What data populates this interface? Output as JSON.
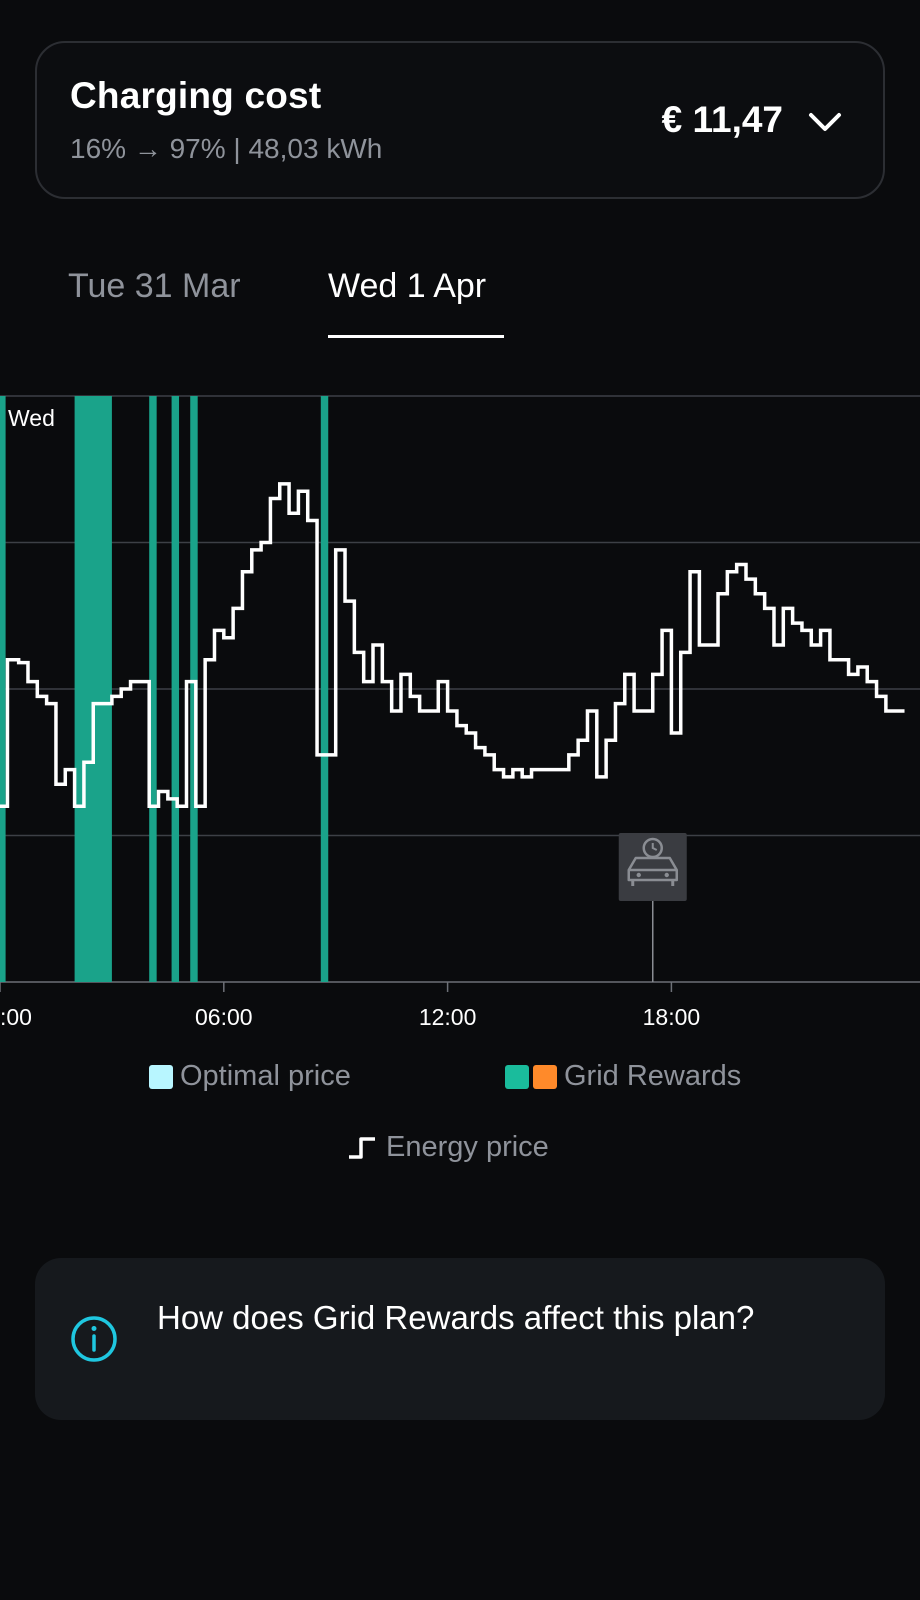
{
  "cost_card": {
    "title": "Charging cost",
    "subtitle": "16% → 97% | 48,03 kWh",
    "amount": "€ 11,47",
    "chevron_icon": "chevron-down-icon"
  },
  "tabs": [
    {
      "label": "Tue 31 Mar",
      "active": false
    },
    {
      "label": "Wed 1 Apr",
      "active": true
    }
  ],
  "chart_data": {
    "type": "line",
    "day_label": "Wed",
    "x_ticks": [
      ":00",
      "06:00",
      "12:00",
      "18:00"
    ],
    "x_tick_hours": [
      0,
      6,
      12,
      18
    ],
    "x_range_hours": [
      0,
      24.7
    ],
    "y_range": [
      0,
      4
    ],
    "grid": "horizontal",
    "line_style": "step",
    "colors": {
      "energy_price": "#ffffff",
      "grid_rewards_teal": "#1aa38a",
      "grid_rewards_orange": "#ff8a2a",
      "optimal_price": "#b8f6ff",
      "plug_in_marker": "#3a3c41"
    },
    "energy_price": {
      "x": [
        0,
        0.2,
        0.5,
        0.75,
        1.0,
        1.25,
        1.5,
        1.75,
        2.0,
        2.25,
        2.5,
        2.75,
        3.0,
        3.25,
        3.5,
        3.75,
        4.0,
        4.25,
        4.5,
        4.75,
        5.0,
        5.25,
        5.5,
        5.75,
        6.0,
        6.25,
        6.5,
        6.75,
        7.0,
        7.25,
        7.5,
        7.75,
        8.0,
        8.25,
        8.5,
        8.75,
        9.0,
        9.25,
        9.5,
        9.75,
        10.0,
        10.25,
        10.5,
        10.75,
        11.0,
        11.25,
        11.5,
        11.75,
        12.0,
        12.25,
        12.5,
        12.75,
        13.0,
        13.25,
        13.5,
        13.75,
        14.0,
        14.25,
        14.5,
        14.75,
        15.0,
        15.25,
        15.5,
        15.75,
        16.0,
        16.25,
        16.5,
        16.75,
        17.0,
        17.25,
        17.5,
        17.75,
        18.0,
        18.25,
        18.5,
        18.75,
        19.0,
        19.25,
        19.5,
        19.75,
        20.0,
        20.25,
        20.5,
        20.75,
        21.0,
        21.25,
        21.5,
        21.75,
        22.0,
        22.25,
        22.5,
        22.75,
        23.0,
        23.25,
        23.5,
        23.75,
        24.0
      ],
      "y": [
        1.2,
        2.2,
        2.18,
        2.05,
        1.95,
        1.9,
        1.35,
        1.45,
        1.2,
        1.5,
        1.9,
        1.9,
        1.95,
        2.0,
        2.05,
        2.05,
        1.2,
        1.3,
        1.25,
        1.2,
        2.05,
        1.2,
        2.2,
        2.4,
        2.35,
        2.55,
        2.8,
        2.95,
        3.0,
        3.3,
        3.4,
        3.2,
        3.35,
        3.15,
        1.55,
        1.55,
        2.95,
        2.6,
        2.25,
        2.05,
        2.3,
        2.05,
        1.85,
        2.1,
        1.95,
        1.85,
        1.85,
        2.05,
        1.85,
        1.75,
        1.7,
        1.6,
        1.55,
        1.45,
        1.4,
        1.45,
        1.4,
        1.45,
        1.45,
        1.45,
        1.45,
        1.55,
        1.65,
        1.85,
        1.4,
        1.65,
        1.9,
        2.1,
        1.85,
        1.85,
        2.1,
        2.4,
        1.7,
        2.25,
        2.8,
        2.3,
        2.3,
        2.65,
        2.8,
        2.85,
        2.75,
        2.65,
        2.55,
        2.3,
        2.55,
        2.45,
        2.4,
        2.3,
        2.4,
        2.2,
        2.2,
        2.1,
        2.15,
        2.05,
        1.95,
        1.85,
        1.85
      ]
    },
    "grid_rewards_windows": [
      [
        0.0,
        0.15
      ],
      [
        2.0,
        3.0
      ],
      [
        4.0,
        4.2
      ],
      [
        4.6,
        4.8
      ],
      [
        5.1,
        5.3
      ],
      [
        8.6,
        8.8
      ]
    ],
    "plug_in_marker_hour": 17.5,
    "plug_in_icon": "car-clock-icon"
  },
  "legend": {
    "optimal_price": "Optimal price",
    "grid_rewards": "Grid Rewards",
    "energy_price": "Energy price",
    "energy_price_icon": "step-line-icon"
  },
  "info_card": {
    "icon": "info-circle-icon",
    "text": "How does Grid Rewards affect this plan?"
  }
}
